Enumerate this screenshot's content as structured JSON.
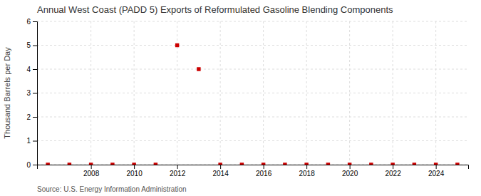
{
  "chart_data": {
    "type": "scatter",
    "title": "Annual West Coast (PADD 5) Exports of Reformulated Gasoline Blending Components",
    "y_label": "Thousand Barrels per Day",
    "source": "Source: U.S. Energy Information Administration",
    "x": [
      2006,
      2007,
      2008,
      2009,
      2010,
      2011,
      2012,
      2013,
      2014,
      2015,
      2016,
      2017,
      2018,
      2019,
      2020,
      2021,
      2022,
      2023,
      2024,
      2025
    ],
    "values": [
      0,
      0,
      0,
      0,
      0,
      0,
      5,
      4,
      0,
      0,
      0,
      0,
      0,
      0,
      0,
      0,
      0,
      0,
      0,
      0
    ],
    "color": "#CC0000",
    "marker": "square",
    "xlim": [
      2005.5,
      2025.5
    ],
    "xticks": [
      2008,
      2010,
      2012,
      2014,
      2016,
      2018,
      2020,
      2022,
      2024
    ],
    "ylim": [
      0,
      6
    ],
    "yticks": [
      0,
      1,
      2,
      3,
      4,
      5,
      6
    ],
    "grid": true
  }
}
